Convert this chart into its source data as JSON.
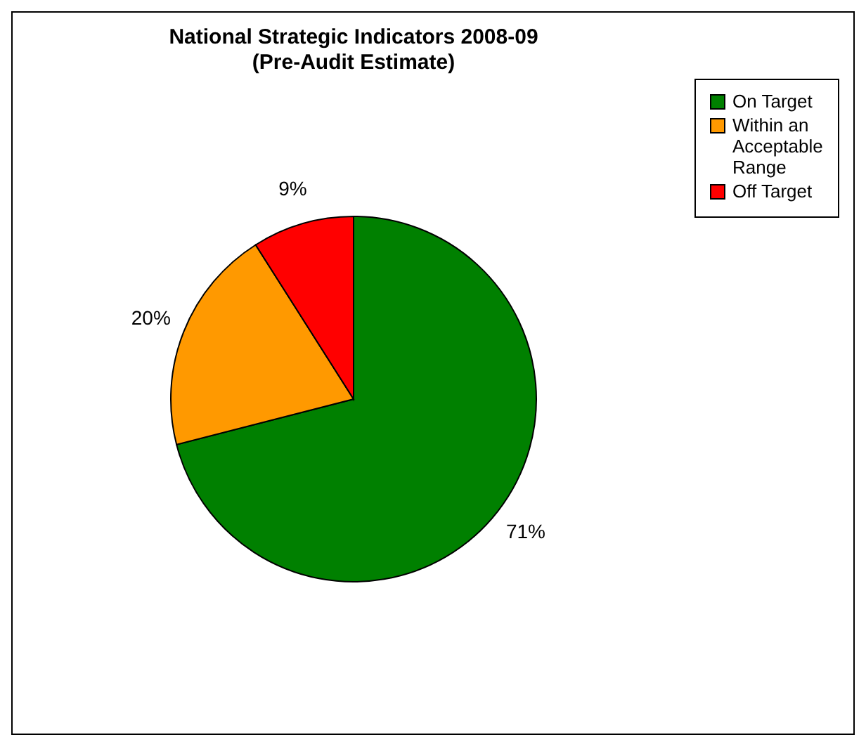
{
  "chart_data": {
    "type": "pie",
    "title": "National Strategic Indicators 2008-09",
    "subtitle": "(Pre-Audit Estimate)",
    "categories": [
      "On Target",
      "Within an Acceptable Range",
      "Off Target"
    ],
    "values": [
      71,
      20,
      9
    ],
    "colors": [
      "#008000",
      "#ff9900",
      "#ff0000"
    ],
    "value_labels": [
      "71%",
      "20%",
      "9%"
    ],
    "legend": "right"
  }
}
